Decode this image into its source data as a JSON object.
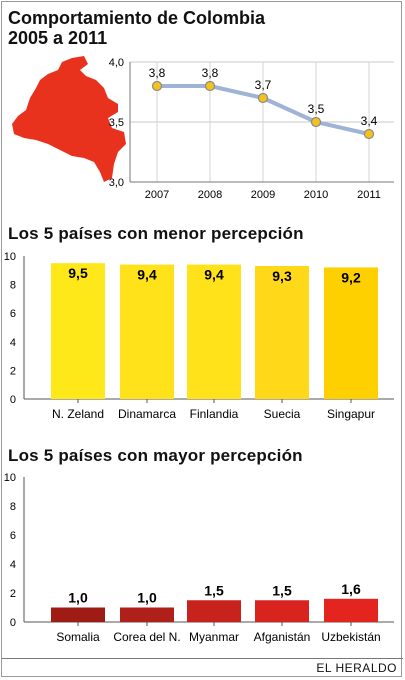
{
  "title_line1": "Comportamiento de Colombia",
  "title_line2": "2005 a 2011",
  "section_low": "Los 5 países con menor percepción",
  "section_high": "Los 5 países con mayor percepción",
  "footer": "EL HERALDO",
  "colors": {
    "map": "#e8321e",
    "line": "#9fb3d6",
    "point_fill": "#f4c21c",
    "point_stroke": "#8a8a8a",
    "low_bars": [
      "#ffe81a",
      "#ffe21a",
      "#ffe21a",
      "#ffd81a",
      "#ffd000"
    ],
    "high_bars": [
      "#9e1c14",
      "#b0201a",
      "#c8221c",
      "#d8231e",
      "#e4241f"
    ]
  },
  "chart_data": [
    {
      "type": "line",
      "x": [
        "2007",
        "2008",
        "2009",
        "2010",
        "2011"
      ],
      "values": [
        3.8,
        3.8,
        3.7,
        3.5,
        3.4
      ],
      "data_labels": [
        "3,8",
        "3,8",
        "3,7",
        "3,5",
        "3,4"
      ],
      "ylim": [
        3.0,
        4.0
      ],
      "yticks": [
        4.0,
        3.5,
        3.0
      ],
      "ytick_labels": [
        "4,0",
        "3,5",
        "3,0"
      ],
      "grid": true
    },
    {
      "type": "bar",
      "categories": [
        "N. Zeland",
        "Dinamarca",
        "Finlandia",
        "Suecia",
        "Singapur"
      ],
      "values": [
        9.5,
        9.4,
        9.4,
        9.3,
        9.2
      ],
      "data_labels": [
        "9,5",
        "9,4",
        "9,4",
        "9,3",
        "9,2"
      ],
      "ylim": [
        0,
        10
      ],
      "yticks": [
        10,
        8,
        6,
        4,
        2,
        0
      ]
    },
    {
      "type": "bar",
      "categories": [
        "Somalia",
        "Corea del N.",
        "Myanmar",
        "Afganistán",
        "Uzbekistán"
      ],
      "values": [
        1.0,
        1.0,
        1.5,
        1.5,
        1.6
      ],
      "data_labels": [
        "1,0",
        "1,0",
        "1,5",
        "1,5",
        "1,6"
      ],
      "ylim": [
        0,
        10
      ],
      "yticks": [
        10,
        8,
        6,
        4,
        2,
        0
      ]
    }
  ]
}
